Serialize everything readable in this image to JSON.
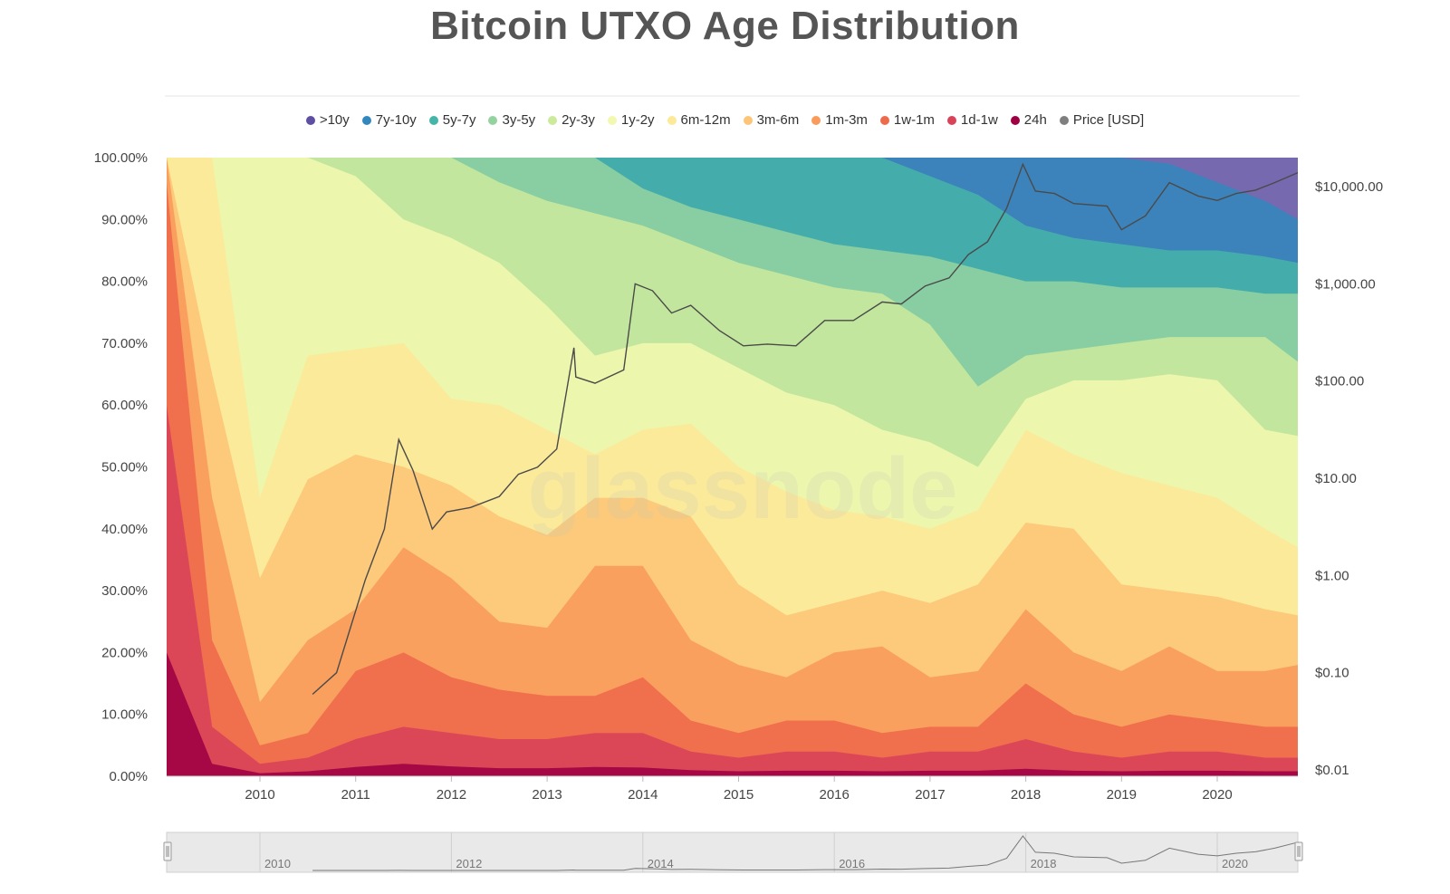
{
  "title": "Bitcoin UTXO Age Distribution",
  "watermark": "glassnode",
  "legend": [
    {
      "label": ">10y",
      "color": "#5e4fa2"
    },
    {
      "label": "7y-10y",
      "color": "#3288bd"
    },
    {
      "label": "5y-7y",
      "color": "#45b5a8"
    },
    {
      "label": "3y-5y",
      "color": "#94d3a0"
    },
    {
      "label": "2y-3y",
      "color": "#ccea9c"
    },
    {
      "label": "1y-2y",
      "color": "#f3f8b0"
    },
    {
      "label": "6m-12m",
      "color": "#fde998"
    },
    {
      "label": "3m-6m",
      "color": "#fdc577"
    },
    {
      "label": "1m-3m",
      "color": "#f99b5b"
    },
    {
      "label": "1w-1m",
      "color": "#ee6a4c"
    },
    {
      "label": "1d-1w",
      "color": "#d9435a"
    },
    {
      "label": "24h",
      "color": "#9e0142"
    },
    {
      "label": "Price [USD]",
      "color": "#7f7f7f"
    }
  ],
  "navigator_labels": [
    "2010",
    "2012",
    "2014",
    "2016",
    "2018",
    "2020"
  ],
  "chart_data": {
    "type": "area",
    "stacked": true,
    "normalized": true,
    "title": "Bitcoin UTXO Age Distribution",
    "x_ticks": [
      "2010",
      "2011",
      "2012",
      "2013",
      "2014",
      "2015",
      "2016",
      "2017",
      "2018",
      "2019",
      "2020"
    ],
    "y_ticks": [
      "0.00%",
      "10.00%",
      "20.00%",
      "30.00%",
      "40.00%",
      "50.00%",
      "60.00%",
      "70.00%",
      "80.00%",
      "90.00%",
      "100.00%"
    ],
    "y2_ticks": [
      "$0.01",
      "$0.10",
      "$1.00",
      "$10.00",
      "$100.00",
      "$1,000.00",
      "$10,000.00"
    ],
    "ylim": [
      0,
      100
    ],
    "y2_scale": "log",
    "y2_lim": [
      0.01,
      20000
    ],
    "x": [
      2009.0,
      2009.5,
      2010.0,
      2010.5,
      2011.0,
      2011.5,
      2012.0,
      2012.5,
      2013.0,
      2013.5,
      2014.0,
      2014.5,
      2015.0,
      2015.5,
      2016.0,
      2016.5,
      2017.0,
      2017.5,
      2018.0,
      2018.5,
      2019.0,
      2019.5,
      2020.0,
      2020.5,
      2020.85
    ],
    "series_order": "top band first (>10y) down to 24h",
    "cumulative_upper_bounds": [
      {
        "name": ">10y",
        "values": [
          100,
          100,
          100,
          100,
          100,
          100,
          100,
          100,
          100,
          100,
          100,
          100,
          100,
          100,
          100,
          100,
          100,
          100,
          100,
          100,
          100,
          100,
          100,
          100,
          100
        ]
      },
      {
        "name": "7y-10y",
        "values": [
          100,
          100,
          100,
          100,
          100,
          100,
          100,
          100,
          100,
          100,
          100,
          100,
          100,
          100,
          100,
          100,
          100,
          100,
          100,
          100,
          100,
          99,
          96,
          93,
          90
        ]
      },
      {
        "name": "5y-7y",
        "values": [
          100,
          100,
          100,
          100,
          100,
          100,
          100,
          100,
          100,
          100,
          100,
          100,
          100,
          100,
          100,
          100,
          97,
          94,
          89,
          87,
          86,
          85,
          85,
          84,
          83
        ]
      },
      {
        "name": "3y-5y",
        "values": [
          100,
          100,
          100,
          100,
          100,
          100,
          100,
          100,
          100,
          100,
          95,
          92,
          90,
          88,
          86,
          85,
          84,
          82,
          80,
          80,
          79,
          79,
          79,
          78,
          78
        ]
      },
      {
        "name": "2y-3y",
        "values": [
          100,
          100,
          100,
          100,
          100,
          100,
          100,
          96,
          93,
          91,
          89,
          86,
          83,
          81,
          79,
          78,
          73,
          63,
          68,
          69,
          70,
          71,
          71,
          71,
          67
        ]
      },
      {
        "name": "1y-2y",
        "values": [
          100,
          100,
          100,
          100,
          97,
          90,
          87,
          83,
          76,
          68,
          70,
          70,
          66,
          62,
          60,
          56,
          54,
          50,
          61,
          64,
          64,
          65,
          64,
          56,
          55
        ]
      },
      {
        "name": "6m-12m",
        "values": [
          100,
          100,
          45,
          68,
          69,
          70,
          61,
          60,
          56,
          52,
          56,
          57,
          50,
          46,
          43,
          42,
          40,
          43,
          56,
          52,
          49,
          47,
          45,
          40,
          37
        ]
      },
      {
        "name": "3m-6m",
        "values": [
          100,
          65,
          32,
          48,
          52,
          50,
          47,
          42,
          39,
          45,
          45,
          42,
          31,
          26,
          28,
          30,
          28,
          31,
          41,
          40,
          31,
          30,
          29,
          27,
          26
        ]
      },
      {
        "name": "1m-3m",
        "values": [
          100,
          45,
          12,
          22,
          27,
          37,
          32,
          25,
          24,
          34,
          34,
          22,
          18,
          16,
          20,
          21,
          16,
          17,
          27,
          20,
          17,
          21,
          17,
          17,
          18
        ]
      },
      {
        "name": "1w-1m",
        "values": [
          96,
          22,
          5,
          7,
          17,
          20,
          16,
          14,
          13,
          13,
          16,
          9,
          7,
          9,
          9,
          7,
          8,
          8,
          15,
          10,
          8,
          10,
          9,
          8,
          8
        ]
      },
      {
        "name": "1d-1w",
        "values": [
          60,
          8,
          2,
          3,
          6,
          8,
          7,
          6,
          6,
          7,
          7,
          4,
          3,
          4,
          4,
          3,
          4,
          4,
          6,
          4,
          3,
          4,
          4,
          3,
          3
        ]
      },
      {
        "name": "24h",
        "values": [
          20,
          2,
          0.5,
          0.8,
          1.5,
          2,
          1.6,
          1.3,
          1.3,
          1.5,
          1.4,
          1,
          0.8,
          0.9,
          0.9,
          0.8,
          0.9,
          0.9,
          1.2,
          0.9,
          0.8,
          0.9,
          0.9,
          0.8,
          0.8
        ]
      }
    ],
    "price_series": {
      "name": "Price [USD]",
      "x": [
        2010.55,
        2010.8,
        2010.95,
        2011.1,
        2011.3,
        2011.45,
        2011.6,
        2011.8,
        2011.95,
        2012.2,
        2012.5,
        2012.7,
        2012.9,
        2013.1,
        2013.28,
        2013.3,
        2013.5,
        2013.8,
        2013.92,
        2014.1,
        2014.3,
        2014.5,
        2014.8,
        2015.05,
        2015.3,
        2015.6,
        2015.9,
        2016.2,
        2016.5,
        2016.7,
        2016.95,
        2017.2,
        2017.4,
        2017.6,
        2017.8,
        2017.97,
        2018.1,
        2018.3,
        2018.5,
        2018.85,
        2019.0,
        2019.25,
        2019.5,
        2019.8,
        2020.0,
        2020.2,
        2020.4,
        2020.6,
        2020.85
      ],
      "values": [
        0.06,
        0.1,
        0.3,
        0.9,
        3,
        25,
        12,
        3,
        4.5,
        5,
        6.5,
        11,
        13,
        20,
        220,
        110,
        95,
        130,
        1000,
        850,
        500,
        600,
        330,
        230,
        240,
        230,
        420,
        420,
        650,
        620,
        950,
        1150,
        2000,
        2700,
        6000,
        17000,
        9000,
        8500,
        6700,
        6300,
        3600,
        5000,
        11000,
        8000,
        7200,
        8500,
        9200,
        11000,
        14000
      ]
    }
  }
}
